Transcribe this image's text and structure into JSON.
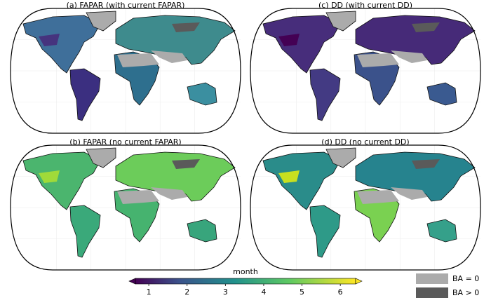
{
  "panels": [
    {
      "title": "(a) FAPAR (with current FAPAR)"
    },
    {
      "title": "(c) DD (with current DD)"
    },
    {
      "title": "(b) FAPAR (no current FAPAR)"
    },
    {
      "title": "(d) DD (no current DD)"
    }
  ],
  "colorbar": {
    "label": "month",
    "lim": [
      0.65,
      6.4
    ],
    "ticks": [
      1,
      2,
      3,
      4,
      5,
      6
    ]
  },
  "legend": [
    {
      "label": "BA = 0",
      "color": "#ababab"
    },
    {
      "label": "BA > 0",
      "color": "#5a5a5a"
    }
  ]
}
